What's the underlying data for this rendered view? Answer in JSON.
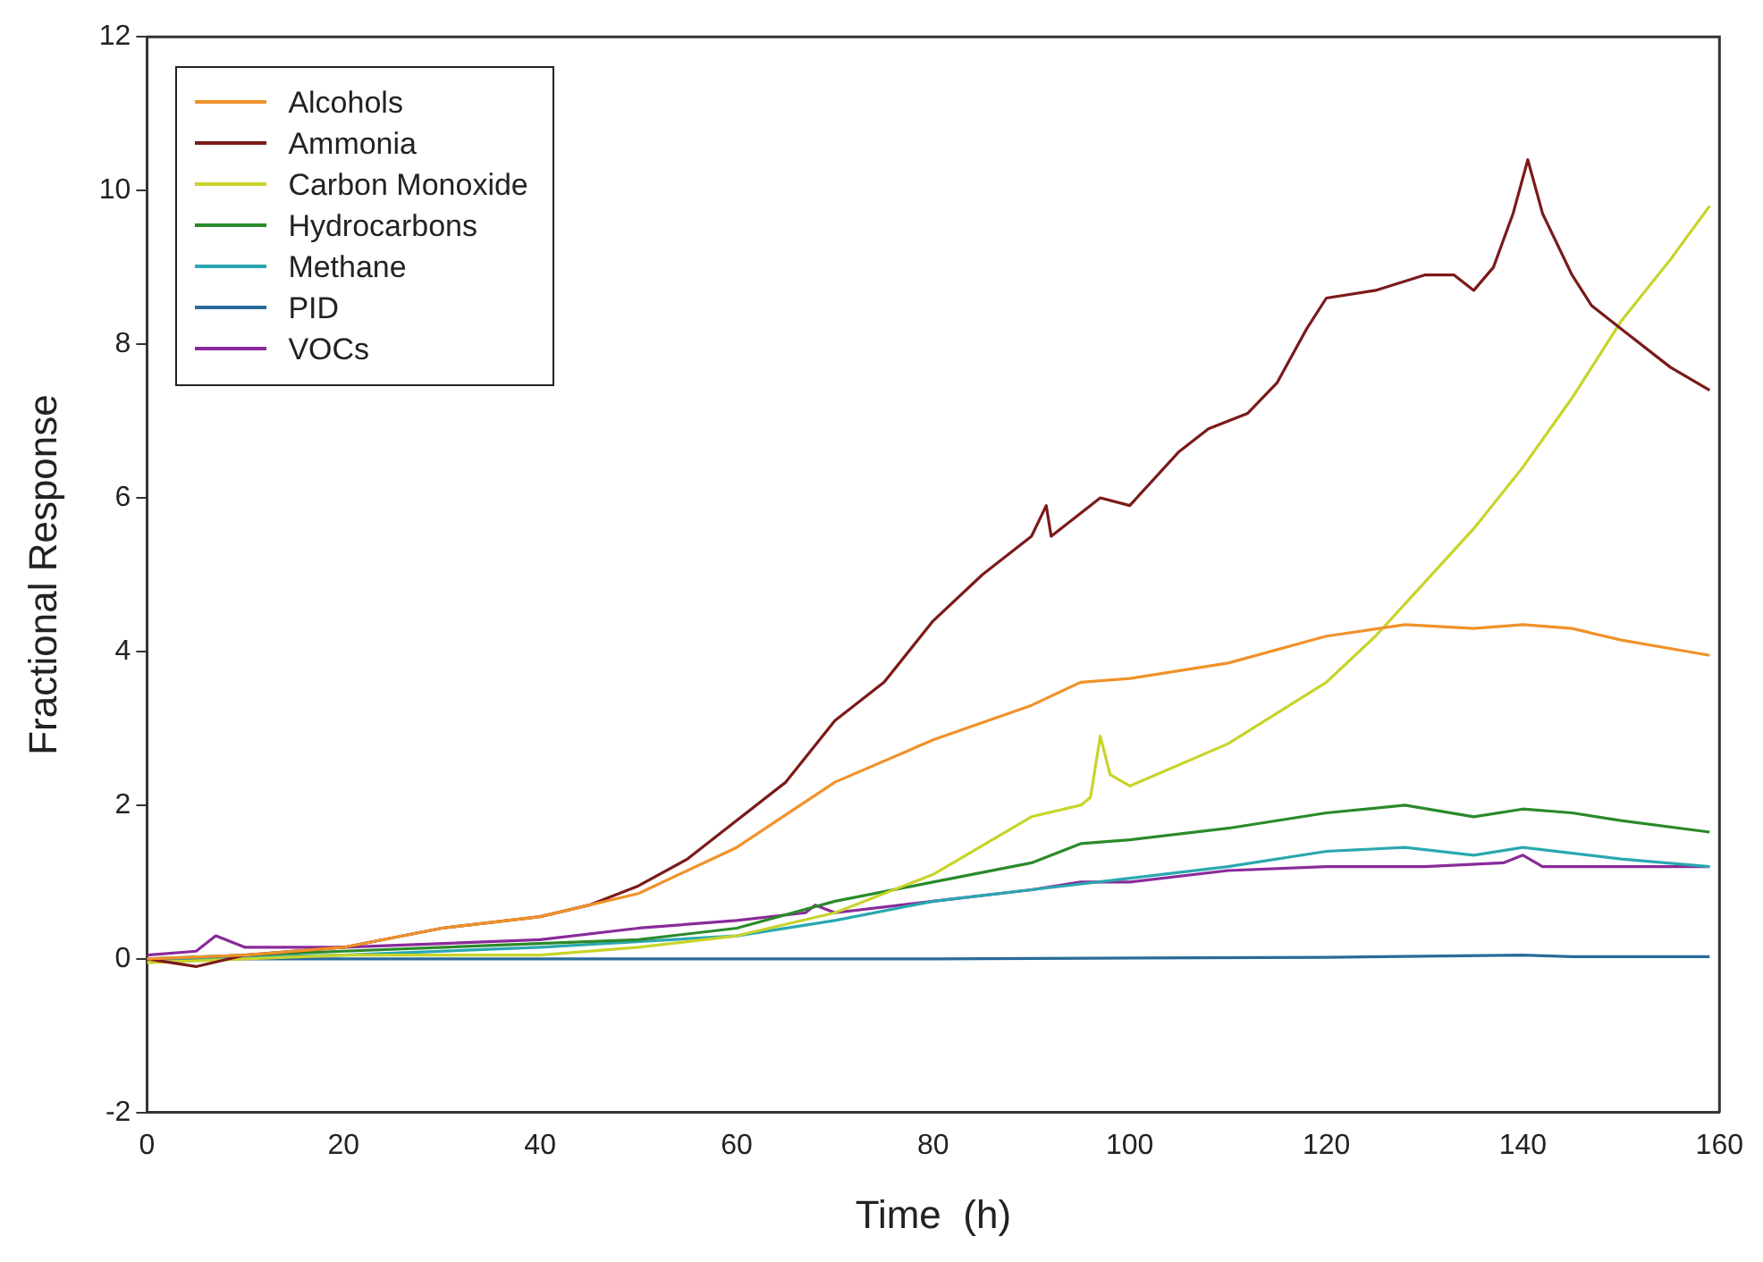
{
  "chart_data": {
    "type": "line",
    "xlabel": "Time  (h)",
    "ylabel": "Fractional Response",
    "xlim": [
      0,
      160
    ],
    "xticks": [
      0,
      20,
      40,
      60,
      80,
      100,
      120,
      140,
      160
    ],
    "ylim": [
      -2,
      12
    ],
    "yticks": [
      -2,
      0,
      2,
      4,
      6,
      8,
      10,
      12
    ],
    "grid": false,
    "legend": "top left",
    "marker": "none",
    "line_style": "solid",
    "series": [
      {
        "name": "Alcohols",
        "color": "#f0922a",
        "x": [
          0,
          10,
          20,
          30,
          40,
          50,
          60,
          70,
          80,
          90,
          95,
          100,
          110,
          120,
          128,
          135,
          140,
          145,
          150,
          159
        ],
        "values": [
          0,
          0.05,
          0.15,
          0.4,
          0.55,
          0.85,
          1.45,
          2.3,
          2.85,
          3.3,
          3.6,
          3.65,
          3.85,
          4.2,
          4.35,
          4.3,
          4.35,
          4.3,
          4.15,
          3.95
        ]
      },
      {
        "name": "Ammonia",
        "color": "#7b1a1a",
        "x": [
          0,
          5,
          10,
          20,
          30,
          40,
          45,
          50,
          55,
          60,
          65,
          70,
          75,
          80,
          85,
          90,
          91.5,
          92,
          95,
          97,
          100,
          105,
          108,
          112,
          115,
          118,
          120,
          125,
          130,
          133,
          135,
          137,
          139,
          140.5,
          142,
          145,
          147,
          150,
          155,
          159
        ],
        "values": [
          0,
          -0.1,
          0.05,
          0.15,
          0.4,
          0.55,
          0.7,
          0.95,
          1.3,
          1.8,
          2.3,
          3.1,
          3.6,
          4.4,
          5.0,
          5.5,
          5.9,
          5.5,
          5.8,
          6.0,
          5.9,
          6.6,
          6.9,
          7.1,
          7.5,
          8.2,
          8.6,
          8.7,
          8.9,
          8.9,
          8.7,
          9.0,
          9.7,
          10.4,
          9.7,
          8.9,
          8.5,
          8.2,
          7.7,
          7.4
        ]
      },
      {
        "name": "Carbon Monoxide",
        "color": "#c8d42a",
        "x": [
          0,
          10,
          20,
          30,
          40,
          50,
          60,
          70,
          80,
          90,
          95,
          96,
          97,
          98,
          100,
          110,
          120,
          125,
          130,
          135,
          140,
          145,
          150,
          155,
          159
        ],
        "values": [
          -0.05,
          0,
          0.05,
          0.05,
          0.05,
          0.15,
          0.3,
          0.6,
          1.1,
          1.85,
          2.0,
          2.1,
          2.9,
          2.4,
          2.25,
          2.8,
          3.6,
          4.2,
          4.9,
          5.6,
          6.4,
          7.3,
          8.3,
          9.1,
          9.8
        ]
      },
      {
        "name": "Hydrocarbons",
        "color": "#2a8a2a",
        "x": [
          0,
          20,
          40,
          50,
          60,
          70,
          80,
          90,
          95,
          100,
          110,
          120,
          128,
          135,
          140,
          145,
          150,
          159
        ],
        "values": [
          0,
          0.1,
          0.2,
          0.25,
          0.4,
          0.75,
          1.0,
          1.25,
          1.5,
          1.55,
          1.7,
          1.9,
          2.0,
          1.85,
          1.95,
          1.9,
          1.8,
          1.65
        ]
      },
      {
        "name": "Methane",
        "color": "#2aa8b0",
        "x": [
          0,
          20,
          40,
          60,
          70,
          80,
          90,
          100,
          110,
          120,
          128,
          135,
          140,
          150,
          159
        ],
        "values": [
          0,
          0.05,
          0.15,
          0.3,
          0.5,
          0.75,
          0.9,
          1.05,
          1.2,
          1.4,
          1.45,
          1.35,
          1.45,
          1.3,
          1.2
        ]
      },
      {
        "name": "PID",
        "color": "#2a6a9a",
        "x": [
          0,
          40,
          80,
          120,
          140,
          145,
          159
        ],
        "values": [
          0,
          0,
          0,
          0.02,
          0.05,
          0.03,
          0.03
        ]
      },
      {
        "name": "VOCs",
        "color": "#8a2a9a",
        "x": [
          0,
          5,
          7,
          8,
          10,
          20,
          40,
          50,
          60,
          67,
          68,
          70,
          80,
          90,
          95,
          100,
          110,
          120,
          130,
          138,
          140,
          142,
          150,
          159
        ],
        "values": [
          0.05,
          0.1,
          0.3,
          0.25,
          0.15,
          0.15,
          0.25,
          0.4,
          0.5,
          0.6,
          0.7,
          0.6,
          0.75,
          0.9,
          1.0,
          1.0,
          1.15,
          1.2,
          1.2,
          1.25,
          1.35,
          1.2,
          1.2,
          1.2
        ]
      }
    ]
  }
}
